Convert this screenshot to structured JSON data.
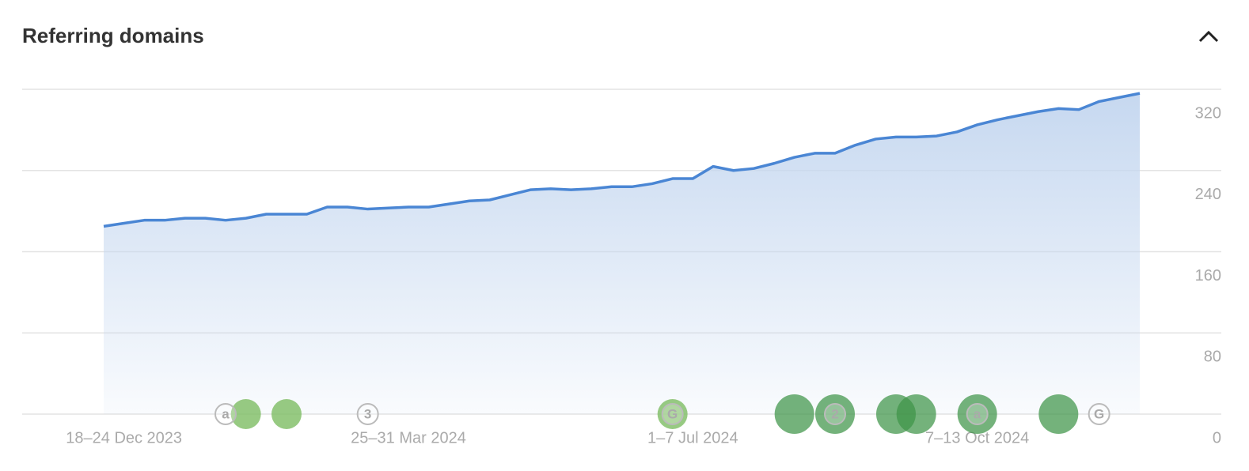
{
  "chart_data": {
    "type": "area",
    "title": "Referring domains",
    "categories": [
      null,
      "18–24 Dec 2023",
      null,
      null,
      null,
      null,
      null,
      null,
      null,
      null,
      null,
      null,
      null,
      null,
      null,
      "25–31 Mar 2024",
      null,
      null,
      null,
      null,
      null,
      null,
      null,
      null,
      null,
      null,
      null,
      null,
      null,
      "1–7 Jul 2024",
      null,
      null,
      null,
      null,
      null,
      null,
      null,
      null,
      null,
      null,
      null,
      null,
      null,
      "7–13 Oct 2024",
      null,
      null,
      null,
      null,
      null,
      null,
      null,
      null
    ],
    "values": [
      185,
      188,
      191,
      191,
      193,
      193,
      191,
      193,
      197,
      197,
      197,
      204,
      204,
      202,
      203,
      204,
      204,
      207,
      210,
      211,
      216,
      221,
      222,
      221,
      222,
      224,
      224,
      227,
      232,
      232,
      244,
      240,
      242,
      247,
      253,
      257,
      257,
      265,
      271,
      273,
      273,
      274,
      278,
      285,
      290,
      294,
      298,
      301,
      300,
      308,
      312,
      316
    ],
    "color": "#4a86d4",
    "ylim": [
      0,
      320
    ],
    "yticks": [
      0,
      80,
      160,
      240,
      320
    ],
    "grid": true,
    "y_axis_side": "right",
    "bubbles": [
      {
        "at": 7,
        "shade": "light"
      },
      {
        "at": 9,
        "shade": "light"
      },
      {
        "at": 28,
        "shade": "light"
      },
      {
        "at": 34,
        "shade": "dark"
      },
      {
        "at": 36,
        "shade": "dark"
      },
      {
        "at": 39,
        "shade": "dark"
      },
      {
        "at": 40,
        "shade": "dark"
      },
      {
        "at": 43,
        "shade": "dark"
      },
      {
        "at": 47,
        "shade": "dark"
      }
    ],
    "events": [
      {
        "at": 6,
        "label": "a"
      },
      {
        "at": 13,
        "label": "3"
      },
      {
        "at": 28,
        "label": "G"
      },
      {
        "at": 36,
        "label": "2"
      },
      {
        "at": 43,
        "label": "a"
      },
      {
        "at": 49,
        "label": "G"
      }
    ]
  }
}
